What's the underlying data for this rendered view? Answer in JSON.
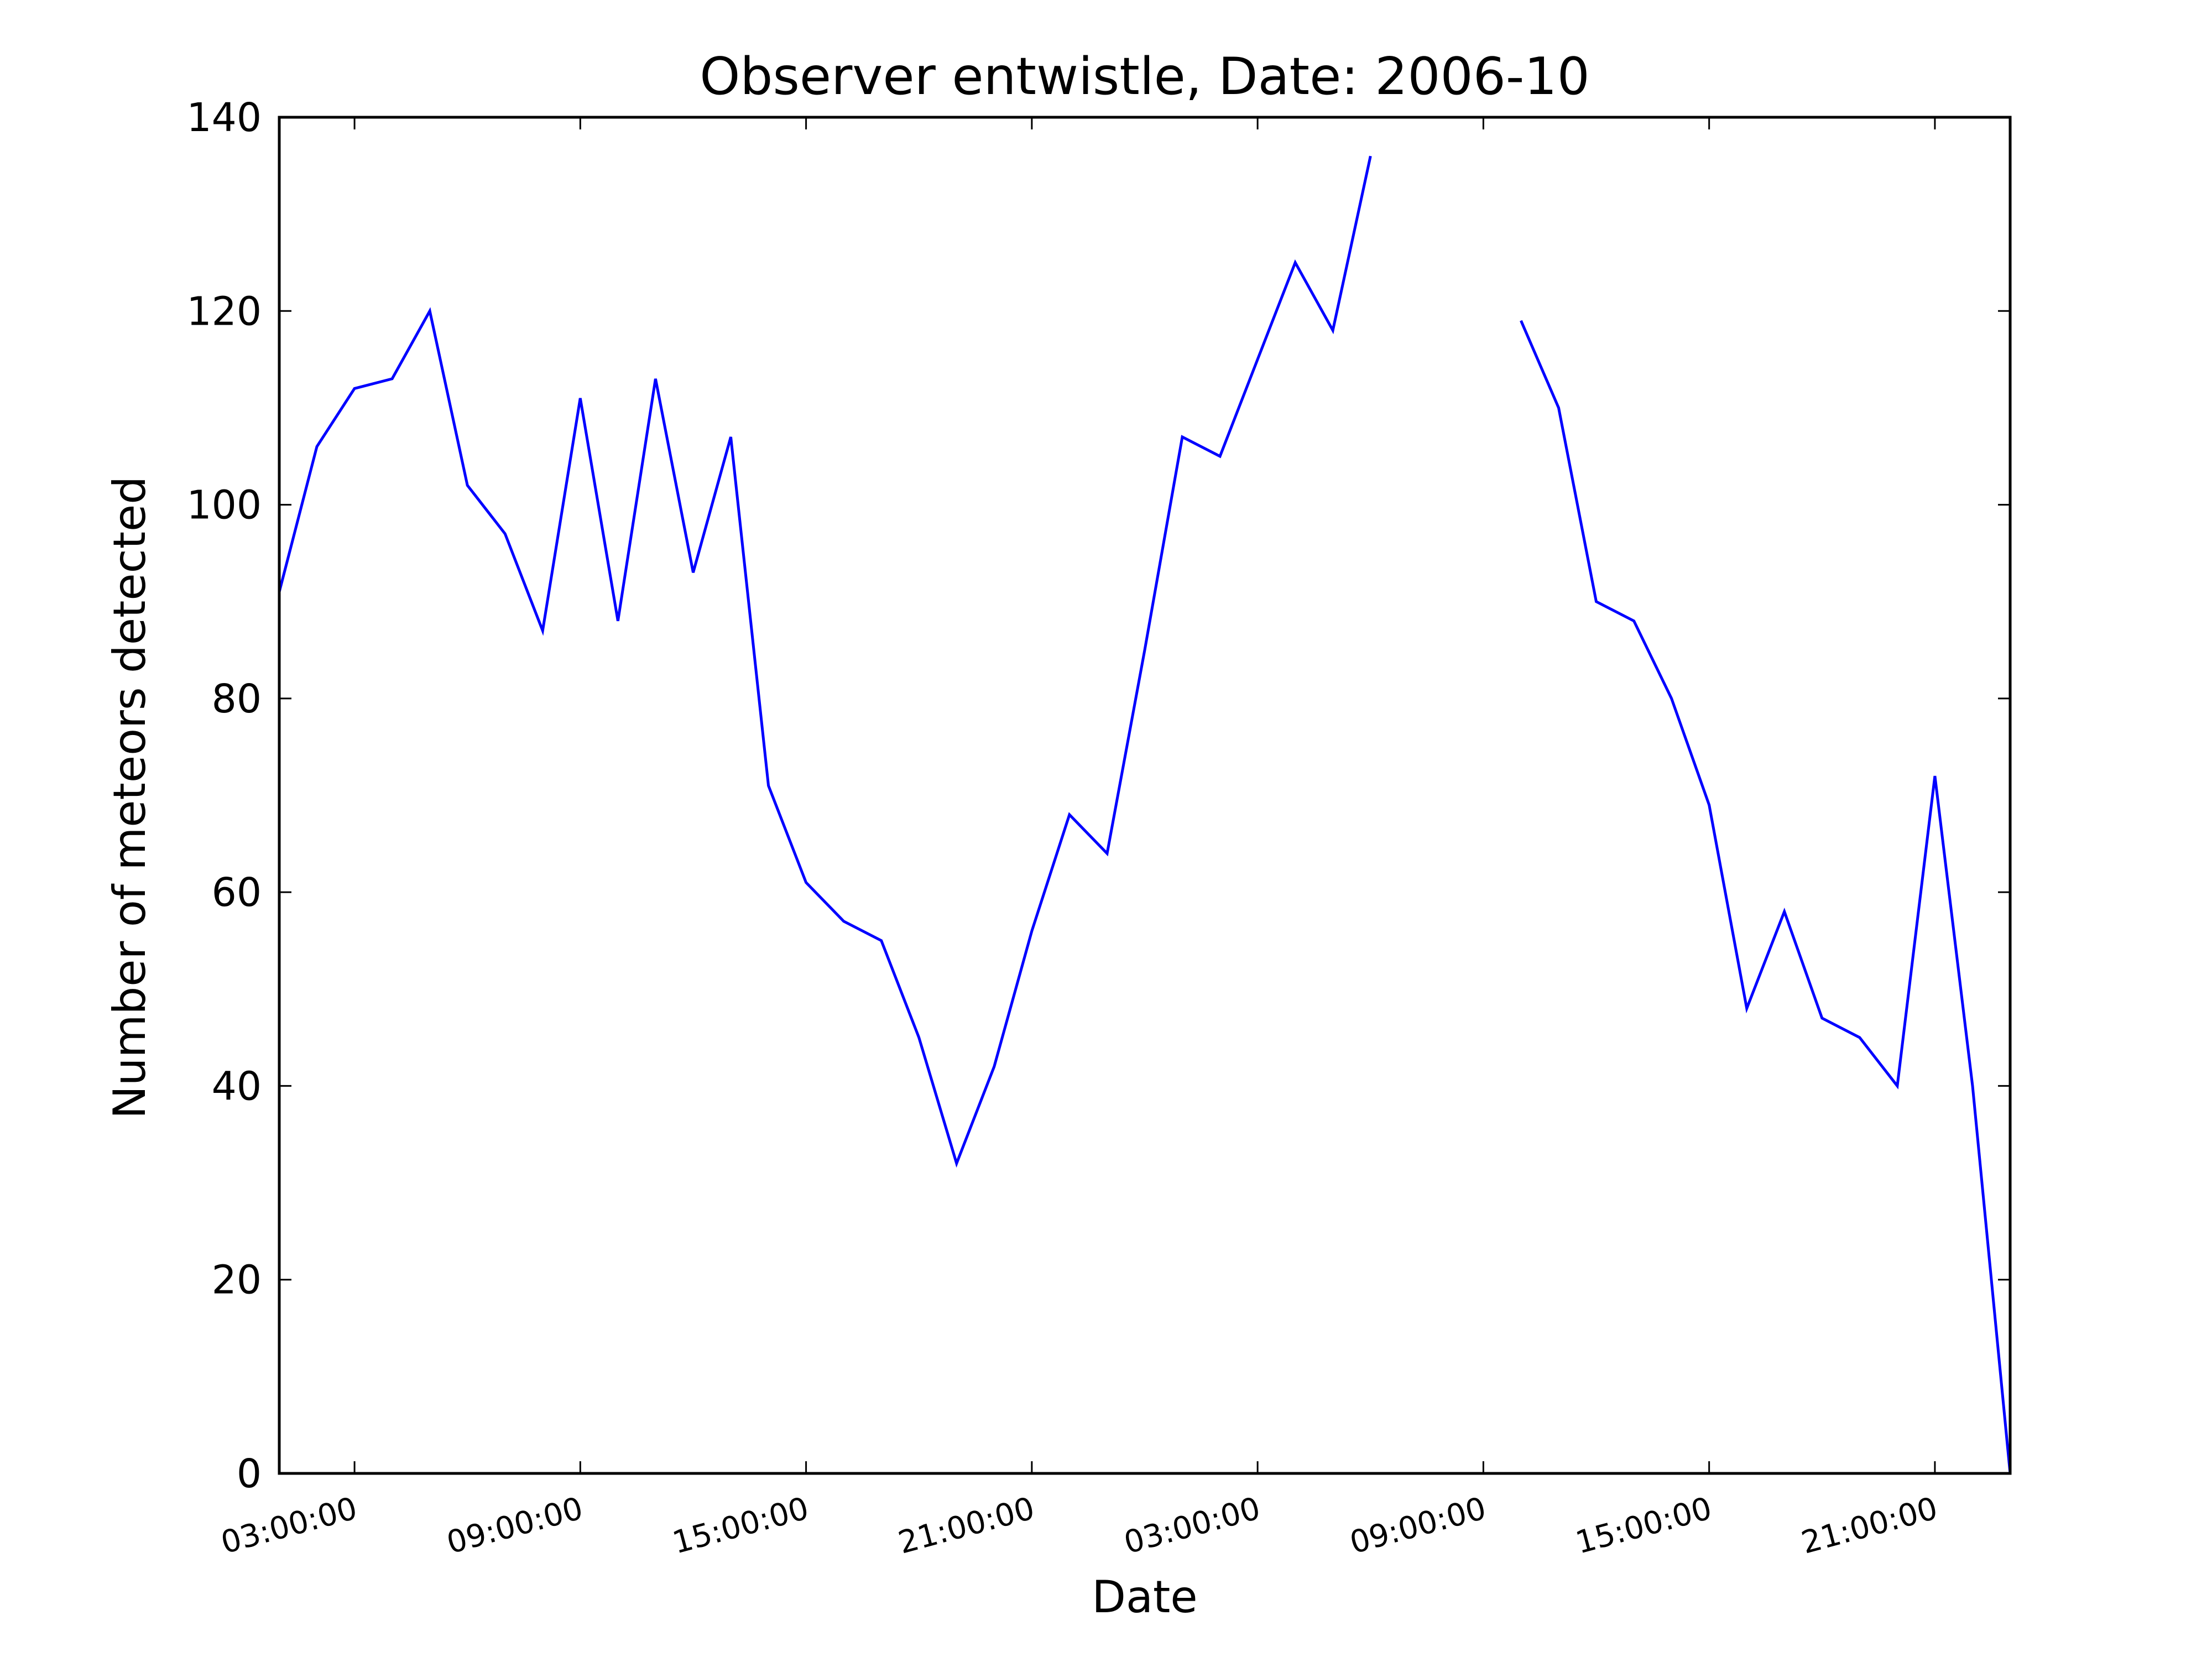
{
  "chart_data": {
    "type": "line",
    "title": "Observer entwistle, Date: 2006-10",
    "xlabel": "Date",
    "ylabel": "Number of meteors detected",
    "ylim": [
      0,
      140
    ],
    "xlim": [
      1,
      47
    ],
    "yticks": [
      0,
      20,
      40,
      60,
      80,
      100,
      120,
      140
    ],
    "xticks": [
      {
        "x": 3,
        "label": "03:00:00"
      },
      {
        "x": 9,
        "label": "09:00:00"
      },
      {
        "x": 15,
        "label": "15:00:00"
      },
      {
        "x": 21,
        "label": "21:00:00"
      },
      {
        "x": 27,
        "label": "03:00:00"
      },
      {
        "x": 33,
        "label": "09:00:00"
      },
      {
        "x": 39,
        "label": "15:00:00"
      },
      {
        "x": 45,
        "label": "21:00:00"
      }
    ],
    "grid": false,
    "series": [
      {
        "color": "#0000ff",
        "x": [
          1,
          2,
          3,
          4,
          5,
          6,
          7,
          8,
          9,
          10,
          11,
          12,
          13,
          14,
          15,
          16,
          17,
          18,
          19,
          20,
          21,
          22,
          23,
          24,
          25,
          26,
          27,
          28,
          29,
          30,
          31,
          32,
          33,
          34,
          35,
          36,
          37,
          38,
          39,
          40,
          41,
          42,
          43,
          44,
          45,
          46,
          47
        ],
        "values": [
          91,
          106,
          112,
          113,
          120,
          102,
          97,
          87,
          111,
          88,
          113,
          93,
          107,
          71,
          61,
          57,
          55,
          45,
          32,
          42,
          56,
          68,
          64,
          85,
          107,
          105,
          115,
          125,
          118,
          136,
          null,
          null,
          null,
          119,
          110,
          90,
          88,
          80,
          69,
          48,
          58,
          47,
          45,
          40,
          72,
          40,
          0
        ]
      }
    ]
  }
}
